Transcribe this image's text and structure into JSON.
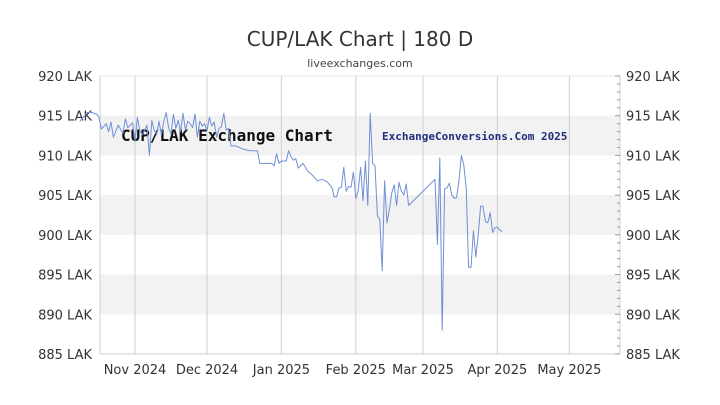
{
  "chart_data": {
    "type": "line",
    "title": "CUP/LAK Chart | 180 D",
    "subtitle": "liveexchanges.com",
    "watermark_left": "CUP/LAK Exchange Chart",
    "watermark_right": "ExchangeConversions.Com 2025",
    "ylim": [
      885,
      920
    ],
    "yticks": [
      920,
      915,
      910,
      905,
      900,
      895,
      890,
      885
    ],
    "ytick_suffix": " LAK",
    "xticks": [
      {
        "label": "Nov 2024",
        "t": 25
      },
      {
        "label": "Dec 2024",
        "t": 55
      },
      {
        "label": "Jan 2025",
        "t": 86
      },
      {
        "label": "Feb 2025",
        "t": 117
      },
      {
        "label": "Mar 2025",
        "t": 145
      },
      {
        "label": "Apr 2025",
        "t": 176
      },
      {
        "label": "May 2025",
        "t": 206
      }
    ],
    "t_range": [
      0,
      213
    ],
    "grid": true,
    "line_color": "#6f8fd6",
    "band_color": "#f2f2f2",
    "series": [
      {
        "values": [
          [
            2,
            914.3
          ],
          [
            4,
            915.0
          ],
          [
            5,
            915.4
          ],
          [
            7,
            915.4
          ],
          [
            9,
            915.2
          ],
          [
            10,
            914.8
          ],
          [
            11,
            913.3
          ],
          [
            13,
            914.0
          ],
          [
            14,
            913.0
          ],
          [
            15,
            914.2
          ],
          [
            16,
            912.3
          ],
          [
            18,
            913.8
          ],
          [
            20,
            912.8
          ],
          [
            21,
            914.6
          ],
          [
            22,
            913.5
          ],
          [
            24,
            914.1
          ],
          [
            25,
            911.8
          ],
          [
            26,
            914.8
          ],
          [
            27,
            913.1
          ],
          [
            28,
            912.6
          ],
          [
            30,
            913.8
          ],
          [
            31,
            910.0
          ],
          [
            32,
            914.4
          ],
          [
            33,
            913.2
          ],
          [
            34,
            912.6
          ],
          [
            35,
            914.3
          ],
          [
            36,
            912.6
          ],
          [
            37,
            914.3
          ],
          [
            38,
            915.4
          ],
          [
            39,
            913.5
          ],
          [
            40,
            912.7
          ],
          [
            41,
            915.2
          ],
          [
            42,
            913.4
          ],
          [
            43,
            914.4
          ],
          [
            44,
            913.0
          ],
          [
            45,
            915.3
          ],
          [
            46,
            913.2
          ],
          [
            47,
            914.3
          ],
          [
            48,
            914.0
          ],
          [
            49,
            913.5
          ],
          [
            50,
            915.2
          ],
          [
            51,
            912.3
          ],
          [
            52,
            914.3
          ],
          [
            53,
            913.7
          ],
          [
            54,
            914.0
          ],
          [
            55,
            913.1
          ],
          [
            56,
            914.8
          ],
          [
            57,
            913.7
          ],
          [
            58,
            914.2
          ],
          [
            59,
            912.3
          ],
          [
            60,
            913.4
          ],
          [
            61,
            913.6
          ],
          [
            62,
            915.3
          ],
          [
            63,
            913.2
          ],
          [
            64,
            913.4
          ],
          [
            65,
            911.2
          ],
          [
            67,
            911.2
          ],
          [
            70,
            910.8
          ],
          [
            73,
            910.6
          ],
          [
            76,
            910.6
          ],
          [
            77,
            909.0
          ],
          [
            80,
            909.0
          ],
          [
            82,
            909.0
          ],
          [
            83,
            908.7
          ],
          [
            84,
            910.2
          ],
          [
            85,
            909.0
          ],
          [
            86,
            909.3
          ],
          [
            88,
            909.3
          ],
          [
            89,
            910.6
          ],
          [
            90,
            909.8
          ],
          [
            91,
            909.4
          ],
          [
            92,
            909.6
          ],
          [
            93,
            908.4
          ],
          [
            95,
            909.0
          ],
          [
            97,
            908.0
          ],
          [
            99,
            907.5
          ],
          [
            101,
            906.8
          ],
          [
            103,
            907.0
          ],
          [
            105,
            906.7
          ],
          [
            107,
            906.0
          ],
          [
            108,
            904.8
          ],
          [
            109,
            904.8
          ],
          [
            110,
            905.9
          ],
          [
            111,
            906.0
          ],
          [
            112,
            908.5
          ],
          [
            113,
            905.5
          ],
          [
            114,
            906.1
          ],
          [
            115,
            906.0
          ],
          [
            116,
            907.9
          ],
          [
            117,
            904.6
          ],
          [
            118,
            905.5
          ],
          [
            119,
            908.5
          ],
          [
            120,
            904.3
          ],
          [
            121,
            909.3
          ],
          [
            122,
            903.7
          ],
          [
            123,
            915.3
          ],
          [
            124,
            909.0
          ],
          [
            125,
            908.7
          ],
          [
            126,
            902.4
          ],
          [
            127,
            901.9
          ],
          [
            128,
            895.5
          ],
          [
            129,
            906.8
          ],
          [
            130,
            901.5
          ],
          [
            131,
            903.2
          ],
          [
            132,
            905.3
          ],
          [
            133,
            906.3
          ],
          [
            134,
            903.7
          ],
          [
            135,
            906.6
          ],
          [
            136,
            905.5
          ],
          [
            137,
            905.0
          ],
          [
            138,
            906.4
          ],
          [
            139,
            903.7
          ],
          [
            150,
            907.0
          ],
          [
            151,
            898.8
          ],
          [
            152,
            909.7
          ],
          [
            153,
            888.0
          ],
          [
            154,
            905.8
          ],
          [
            155,
            905.9
          ],
          [
            156,
            906.5
          ],
          [
            157,
            905.0
          ],
          [
            158,
            904.6
          ],
          [
            159,
            904.7
          ],
          [
            160,
            906.9
          ],
          [
            161,
            910.0
          ],
          [
            162,
            908.8
          ],
          [
            163,
            905.9
          ],
          [
            164,
            895.9
          ],
          [
            165,
            895.9
          ],
          [
            166,
            900.5
          ],
          [
            167,
            897.2
          ],
          [
            168,
            900.0
          ],
          [
            169,
            903.6
          ],
          [
            170,
            903.6
          ],
          [
            171,
            901.7
          ],
          [
            172,
            901.5
          ],
          [
            173,
            902.8
          ],
          [
            174,
            900.3
          ],
          [
            175,
            900.9
          ],
          [
            176,
            901.0
          ],
          [
            177,
            900.6
          ],
          [
            178,
            900.4
          ]
        ]
      }
    ]
  }
}
